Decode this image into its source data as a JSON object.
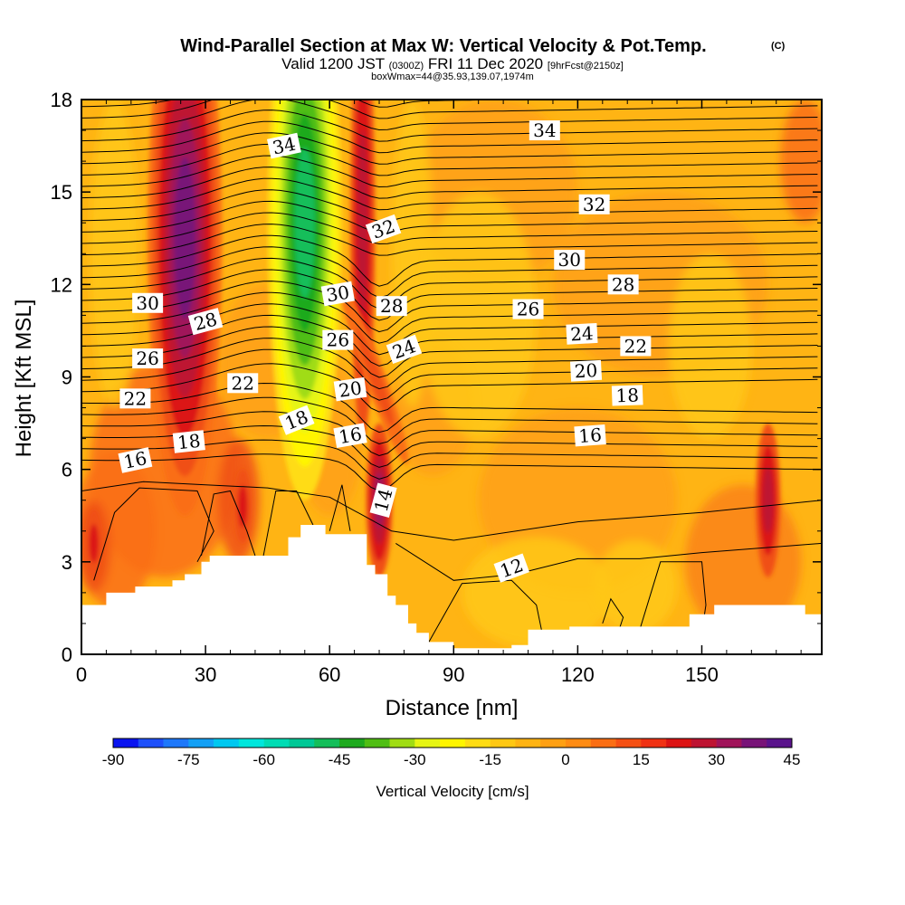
{
  "header": {
    "title": "Wind-Parallel Section at Max W: Vertical Velocity & Pot.Temp.",
    "copyright": "(C)",
    "valid_prefix": "Valid 1200 JST",
    "valid_utc": "(0300Z)",
    "valid_date": "FRI 11 Dec 2020",
    "forecast_tag": "[9hrFcst@2150z]",
    "box_info": "boxWmax=44@35.93,139.07,1974m"
  },
  "colorbar": {
    "label": "Vertical Velocity [cm/s]",
    "ticks": [
      "-90",
      "-75",
      "-60",
      "-45",
      "-30",
      "-15",
      "0",
      "15",
      "30",
      "45"
    ],
    "colors": [
      "#0a14f0",
      "#1e50fa",
      "#1e78fa",
      "#14a0f5",
      "#00c8f0",
      "#00e6dc",
      "#00dcb4",
      "#00c896",
      "#14be5a",
      "#1eaa1e",
      "#50be14",
      "#a0dc14",
      "#e6f514",
      "#fff500",
      "#ffdc14",
      "#ffc814",
      "#ffb414",
      "#ffa014",
      "#ff8c14",
      "#fa6e14",
      "#f55014",
      "#f03214",
      "#dc1414",
      "#be1432",
      "#a0145a",
      "#781478",
      "#5a148c"
    ]
  },
  "chart_data": {
    "type": "heatmap",
    "subtype": "cross-section contour: filled vertical velocity with potential temperature contour lines",
    "xlabel": "Distance [nm]",
    "ylabel": "Height [Kft MSL]",
    "xlim": [
      0,
      179
    ],
    "ylim": [
      0,
      18
    ],
    "x_ticks": [
      "0",
      "30",
      "60",
      "90",
      "120",
      "150"
    ],
    "y_ticks": [
      "0",
      "3",
      "6",
      "9",
      "12",
      "15",
      "18"
    ],
    "shaded_variable": "Vertical Velocity [cm/s]",
    "shaded_range": [
      -90,
      45
    ],
    "contour_variable": "Potential temperature",
    "contour_levels": [
      12,
      14,
      16,
      18,
      20,
      22,
      24,
      26,
      28,
      30,
      32,
      34
    ],
    "contour_label_texts": [
      "12",
      "14",
      "16",
      "16",
      "16",
      "18",
      "18",
      "18",
      "20",
      "20",
      "22",
      "22",
      "22",
      "24",
      "24",
      "26",
      "26",
      "26",
      "28",
      "28",
      "28",
      "30",
      "30",
      "30",
      "32",
      "32",
      "34",
      "34"
    ],
    "vertical_velocity_features": [
      {
        "kind": "updraft",
        "x": 25,
        "y": 14,
        "value": 42
      },
      {
        "kind": "downdraft",
        "x": 54,
        "y": 14,
        "value": -45
      },
      {
        "kind": "updraft",
        "x": 68,
        "y": 14,
        "value": 20
      },
      {
        "kind": "updraft",
        "x": 72,
        "y": 5,
        "value": 28
      },
      {
        "kind": "updraft",
        "x": 166,
        "y": 5,
        "value": 25
      },
      {
        "kind": "updraft",
        "x": 39,
        "y": 4.8,
        "value": 17
      }
    ],
    "terrain_kft": [
      [
        0,
        1.6
      ],
      [
        6,
        2.0
      ],
      [
        13,
        2.2
      ],
      [
        22,
        2.4
      ],
      [
        25,
        2.6
      ],
      [
        29,
        3.0
      ],
      [
        31,
        3.2
      ],
      [
        48,
        3.2
      ],
      [
        50,
        3.8
      ],
      [
        53,
        4.2
      ],
      [
        59,
        3.9
      ],
      [
        68,
        3.9
      ],
      [
        69,
        2.9
      ],
      [
        71,
        2.6
      ],
      [
        74,
        1.9
      ],
      [
        76,
        1.6
      ],
      [
        79,
        1.0
      ],
      [
        81,
        0.7
      ],
      [
        84,
        0.4
      ],
      [
        90,
        0.2
      ],
      [
        104,
        0.3
      ],
      [
        108,
        0.8
      ],
      [
        118,
        0.9
      ],
      [
        145,
        0.9
      ],
      [
        147,
        1.3
      ],
      [
        153,
        1.6
      ],
      [
        170,
        1.6
      ],
      [
        175,
        1.3
      ],
      [
        179,
        1.3
      ]
    ]
  }
}
